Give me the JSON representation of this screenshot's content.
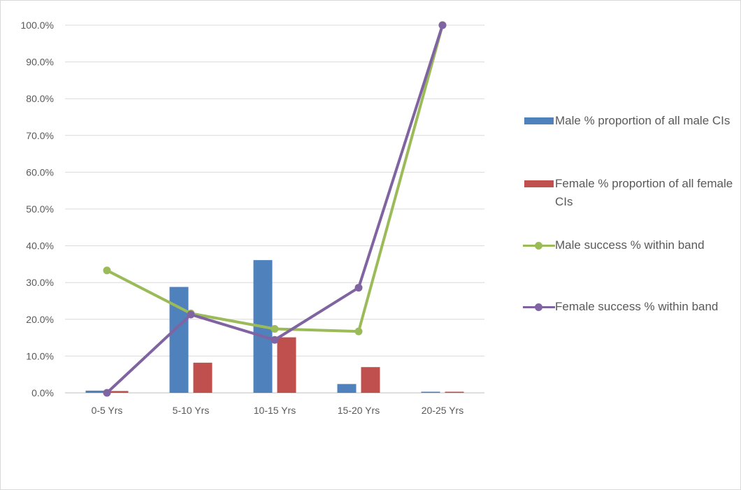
{
  "chart_data": {
    "type": "bar",
    "categories": [
      "0-5 Yrs",
      "5-10 Yrs",
      "10-15 Yrs",
      "15-20 Yrs",
      "20-25 Yrs"
    ],
    "ylim": [
      0,
      100
    ],
    "y_ticks": [
      "0.0%",
      "10.0%",
      "20.0%",
      "30.0%",
      "40.0%",
      "50.0%",
      "60.0%",
      "70.0%",
      "80.0%",
      "90.0%",
      "100.0%"
    ],
    "grid": true,
    "legend_position": "right",
    "series": [
      {
        "name": "Male % proportion of all male CIs",
        "kind": "bar",
        "color": "#4f81bd",
        "values": [
          0.6,
          28.8,
          36.1,
          2.4,
          0.3
        ]
      },
      {
        "name": "Female % proportion of all female CIs",
        "kind": "bar",
        "color": "#c0504d",
        "values": [
          0.5,
          8.2,
          15.1,
          7.0,
          0.3
        ]
      },
      {
        "name": "Male success % within band",
        "kind": "line",
        "color": "#9bbb59",
        "values": [
          33.3,
          21.6,
          17.4,
          16.7,
          100.0
        ]
      },
      {
        "name": "Female success % within band",
        "kind": "line",
        "color": "#8064a2",
        "values": [
          0.0,
          21.3,
          14.4,
          28.6,
          100.0
        ]
      }
    ]
  }
}
